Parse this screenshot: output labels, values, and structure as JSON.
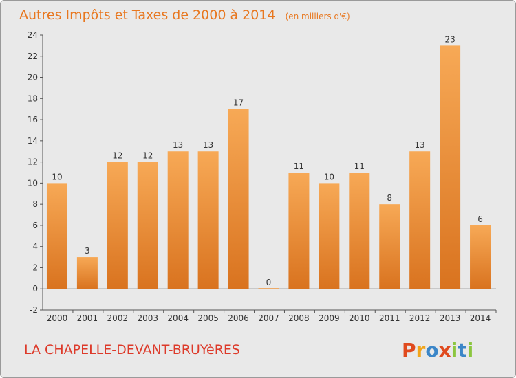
{
  "chart_data": {
    "type": "bar",
    "title": "Autres Impôts et Taxes de 2000 à 2014",
    "subtitle": "(en milliers d'€)",
    "categories": [
      "2000",
      "2001",
      "2002",
      "2003",
      "2004",
      "2005",
      "2006",
      "2007",
      "2008",
      "2009",
      "2010",
      "2011",
      "2012",
      "2013",
      "2014"
    ],
    "values": [
      10,
      3,
      12,
      12,
      13,
      13,
      17,
      0,
      11,
      10,
      11,
      8,
      13,
      23,
      6
    ],
    "value_labels": [
      "10",
      "3",
      "12",
      "12",
      "13",
      "13",
      "17",
      "0",
      "11",
      "10",
      "11",
      "8",
      "13",
      "23",
      "6"
    ],
    "ylim": [
      -2,
      24
    ],
    "yticks": [
      -2,
      0,
      2,
      4,
      6,
      8,
      10,
      12,
      14,
      16,
      18,
      20,
      22,
      24
    ],
    "ytick_labels": [
      "-2",
      "0",
      "2",
      "4",
      "6",
      "8",
      "10",
      "12",
      "14",
      "16",
      "18",
      "20",
      "22",
      "24"
    ],
    "grid": false,
    "bar_color": "#f0953a"
  },
  "footer": {
    "place": "LA CHAPELLE-DEVANT-BRUYèRES",
    "logo_letters": [
      "P",
      "r",
      "o",
      "x",
      "i",
      "t",
      "i"
    ],
    "logo_colors": [
      "#e04a1e",
      "#f2a51a",
      "#3b86c8",
      "#e04a1e",
      "#8cc63f",
      "#3b86c8",
      "#8cc63f"
    ]
  }
}
